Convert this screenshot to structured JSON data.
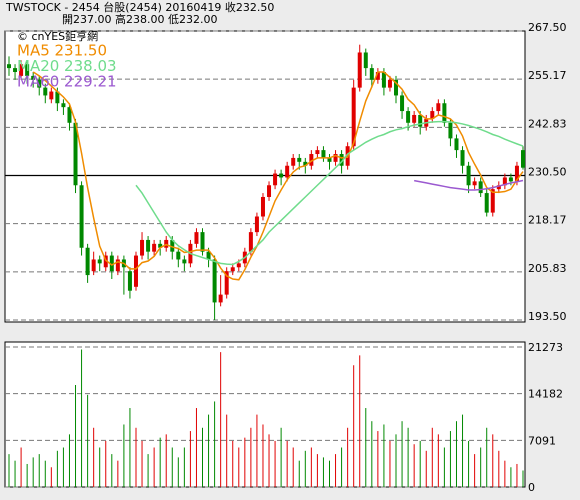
{
  "chart_data": {
    "type": "candlestick",
    "title": "TWSTOCK  - 2454  台股(2454) 20160419  收232.50",
    "subtitle": "開237.00  高238.00  低232.00",
    "watermark": "© cnYES鉅亨網",
    "up_color": "#e00000",
    "down_color": "#008800",
    "ylim": [
      193.5,
      267.5
    ],
    "yticks": [
      {
        "value": 193.5,
        "label": "193.50"
      },
      {
        "value": 205.83,
        "label": "205.83"
      },
      {
        "value": 218.17,
        "label": "218.17"
      },
      {
        "value": 230.5,
        "label": "230.50"
      },
      {
        "value": 242.83,
        "label": "242.83"
      },
      {
        "value": 255.17,
        "label": "255.17"
      },
      {
        "value": 267.5,
        "label": "267.50"
      }
    ],
    "reference_line": 230.5,
    "grid": true,
    "ohlc": [
      [
        259,
        261,
        256,
        258
      ],
      [
        258,
        259,
        255,
        257
      ],
      [
        256,
        260,
        255,
        259
      ],
      [
        259,
        260,
        254,
        256
      ],
      [
        256,
        257,
        253,
        255
      ],
      [
        255,
        256,
        251,
        253
      ],
      [
        253,
        254,
        249,
        251
      ],
      [
        250,
        253,
        249,
        252
      ],
      [
        252,
        253,
        247,
        249
      ],
      [
        249,
        250,
        246,
        248
      ],
      [
        248,
        249,
        242,
        244
      ],
      [
        244,
        245,
        226,
        228
      ],
      [
        228,
        229,
        210,
        212
      ],
      [
        212,
        213,
        203,
        205
      ],
      [
        206,
        211,
        205,
        209
      ],
      [
        209,
        210,
        206,
        208
      ],
      [
        207,
        211,
        206,
        210
      ],
      [
        210,
        211,
        204,
        206
      ],
      [
        206,
        210,
        205,
        209
      ],
      [
        209,
        210,
        200,
        207
      ],
      [
        206,
        207,
        199,
        201
      ],
      [
        202,
        211,
        201,
        210
      ],
      [
        210,
        216,
        209,
        214
      ],
      [
        214,
        215,
        209,
        211
      ],
      [
        211,
        214,
        210,
        213
      ],
      [
        213,
        214,
        210,
        212
      ],
      [
        212,
        215,
        211,
        214
      ],
      [
        214,
        215,
        209,
        211
      ],
      [
        211,
        212,
        207,
        209
      ],
      [
        209,
        210,
        206,
        208
      ],
      [
        208,
        214,
        207,
        213
      ],
      [
        213,
        217,
        212,
        216
      ],
      [
        216,
        217,
        210,
        211
      ],
      [
        211,
        212,
        207,
        209
      ],
      [
        209,
        210,
        193.5,
        198
      ],
      [
        198,
        205,
        197,
        200
      ],
      [
        200,
        207,
        199,
        206
      ],
      [
        206,
        208,
        205,
        207
      ],
      [
        207,
        209,
        206,
        208
      ],
      [
        208,
        212,
        207,
        211
      ],
      [
        211,
        217,
        210,
        216
      ],
      [
        216,
        221,
        215,
        220
      ],
      [
        220,
        226,
        219,
        225
      ],
      [
        225,
        229,
        224,
        228
      ],
      [
        228,
        232,
        227,
        231
      ],
      [
        231,
        232,
        228,
        230
      ],
      [
        230,
        234,
        229,
        233
      ],
      [
        233,
        236,
        232,
        235
      ],
      [
        235,
        236,
        232,
        234
      ],
      [
        234,
        235,
        231,
        233
      ],
      [
        233,
        237,
        232,
        236
      ],
      [
        236,
        238,
        235,
        237
      ],
      [
        237,
        238,
        234,
        235
      ],
      [
        235,
        236,
        232,
        234
      ],
      [
        234,
        237,
        233,
        236
      ],
      [
        236,
        237,
        231,
        233
      ],
      [
        233,
        239,
        232,
        238
      ],
      [
        238,
        255,
        237,
        253
      ],
      [
        253,
        264,
        252,
        262
      ],
      [
        262,
        263,
        256,
        258
      ],
      [
        258,
        259,
        253,
        255
      ],
      [
        255,
        258,
        254,
        257
      ],
      [
        257,
        258,
        251,
        253
      ],
      [
        253,
        256,
        252,
        255
      ],
      [
        255,
        256,
        249,
        251
      ],
      [
        251,
        252,
        245,
        247
      ],
      [
        247,
        248,
        242,
        244
      ],
      [
        244,
        247,
        243,
        246
      ],
      [
        246,
        247,
        241,
        243
      ],
      [
        243,
        246,
        242,
        245
      ],
      [
        245,
        248,
        244,
        247
      ],
      [
        247,
        250,
        246,
        249
      ],
      [
        249,
        250,
        243,
        244
      ],
      [
        244,
        245,
        238,
        240
      ],
      [
        240,
        241,
        235,
        237
      ],
      [
        237,
        238,
        231,
        233
      ],
      [
        233,
        234,
        226,
        228
      ],
      [
        228,
        230,
        227,
        229
      ],
      [
        229,
        230,
        225,
        226
      ],
      [
        226,
        227,
        220,
        221
      ],
      [
        221,
        228,
        220,
        227
      ],
      [
        227,
        229,
        226,
        228
      ],
      [
        228,
        231,
        227,
        230
      ],
      [
        230,
        231,
        228,
        229
      ],
      [
        229,
        234,
        228,
        233
      ],
      [
        237,
        238,
        232,
        232.5
      ]
    ],
    "series": [
      {
        "name": "MA5 231.50",
        "color": "#f08c00",
        "values": [
          null,
          null,
          null,
          null,
          257,
          256,
          254.8,
          253.4,
          252,
          250.6,
          248.8,
          244.2,
          236.2,
          227.4,
          219.6,
          212.4,
          208.8,
          207.6,
          208.4,
          208,
          206.6,
          206.6,
          208.2,
          208.6,
          209.8,
          212,
          212.8,
          212.2,
          211.8,
          210.8,
          211,
          211.4,
          211.4,
          211.4,
          209.4,
          206.8,
          204.8,
          204,
          203.8,
          206.4,
          209.6,
          212.4,
          216,
          220,
          224,
          226.8,
          229.4,
          231.4,
          232.6,
          233,
          234.2,
          235,
          235,
          235,
          235.6,
          235,
          235.2,
          238.8,
          244.4,
          249.6,
          253.2,
          257,
          257,
          255.6,
          254.2,
          252.6,
          250,
          248.6,
          246.2,
          245,
          245,
          246,
          245.6,
          245,
          243.4,
          240.6,
          236.4,
          233.4,
          230.6,
          227.4,
          226.2,
          226.2,
          226.4,
          227,
          229.4,
          231.5
        ]
      },
      {
        "name": "MA20 238.03",
        "color": "#6fdc8c",
        "values": [
          null,
          null,
          null,
          null,
          null,
          null,
          null,
          null,
          null,
          null,
          null,
          null,
          null,
          null,
          null,
          null,
          null,
          null,
          null,
          null,
          null,
          228,
          226,
          223.5,
          221,
          218.5,
          216,
          214,
          212.5,
          211.5,
          210.5,
          210,
          209.5,
          209,
          208.5,
          208,
          207.8,
          207.7,
          208.5,
          209.5,
          211,
          212.5,
          214,
          216,
          217.5,
          219,
          220.5,
          222,
          223.5,
          225,
          226.5,
          228,
          229.5,
          231,
          232.5,
          234,
          236,
          237,
          238,
          239,
          239.8,
          240.5,
          241,
          241.7,
          242.2,
          242.5,
          243,
          243.4,
          243.7,
          244,
          244.2,
          244.3,
          244.3,
          244.2,
          244,
          243.7,
          243.3,
          242.8,
          242.3,
          241.7,
          241,
          240.5,
          239.8,
          239.2,
          238.6,
          238.03
        ]
      },
      {
        "name": "MA60 229.21",
        "color": "#9b59d0",
        "values": [
          null,
          null,
          null,
          null,
          null,
          null,
          null,
          null,
          null,
          null,
          null,
          null,
          null,
          null,
          null,
          null,
          null,
          null,
          null,
          null,
          null,
          null,
          null,
          null,
          null,
          null,
          null,
          null,
          null,
          null,
          null,
          null,
          null,
          null,
          null,
          null,
          null,
          null,
          null,
          null,
          null,
          null,
          null,
          null,
          null,
          null,
          null,
          null,
          null,
          null,
          null,
          null,
          null,
          null,
          null,
          null,
          null,
          null,
          null,
          null,
          null,
          null,
          null,
          null,
          null,
          null,
          null,
          229.2,
          228.9,
          228.6,
          228.3,
          228,
          227.7,
          227.4,
          227.2,
          227,
          226.8,
          226.8,
          226.9,
          227.1,
          227.4,
          227.8,
          228.2,
          228.6,
          228.9,
          229.21
        ]
      }
    ],
    "volume": {
      "ylim": [
        0,
        21273
      ],
      "yticks": [
        0,
        7091,
        14182,
        21273
      ],
      "values": [
        5000,
        4000,
        6000,
        3500,
        4500,
        5000,
        4000,
        3000,
        5500,
        6000,
        8000,
        15500,
        20900,
        14000,
        9000,
        6000,
        7000,
        5000,
        4000,
        9500,
        12000,
        9000,
        7000,
        5000,
        6000,
        7500,
        8000,
        6000,
        4500,
        6000,
        8500,
        12000,
        9000,
        11000,
        13000,
        20500,
        11000,
        7000,
        6000,
        7500,
        9000,
        11000,
        9500,
        8000,
        7000,
        9000,
        7000,
        6000,
        4000,
        5500,
        6000,
        5000,
        4500,
        4000,
        5000,
        6000,
        9000,
        18500,
        20000,
        12000,
        10000,
        8500,
        9500,
        7000,
        8000,
        10000,
        9000,
        6500,
        7000,
        5500,
        9000,
        8000,
        6000,
        8500,
        10000,
        11000,
        7000,
        5000,
        6000,
        9000,
        8000,
        5500,
        4000,
        3000,
        3500,
        2500
      ]
    }
  }
}
